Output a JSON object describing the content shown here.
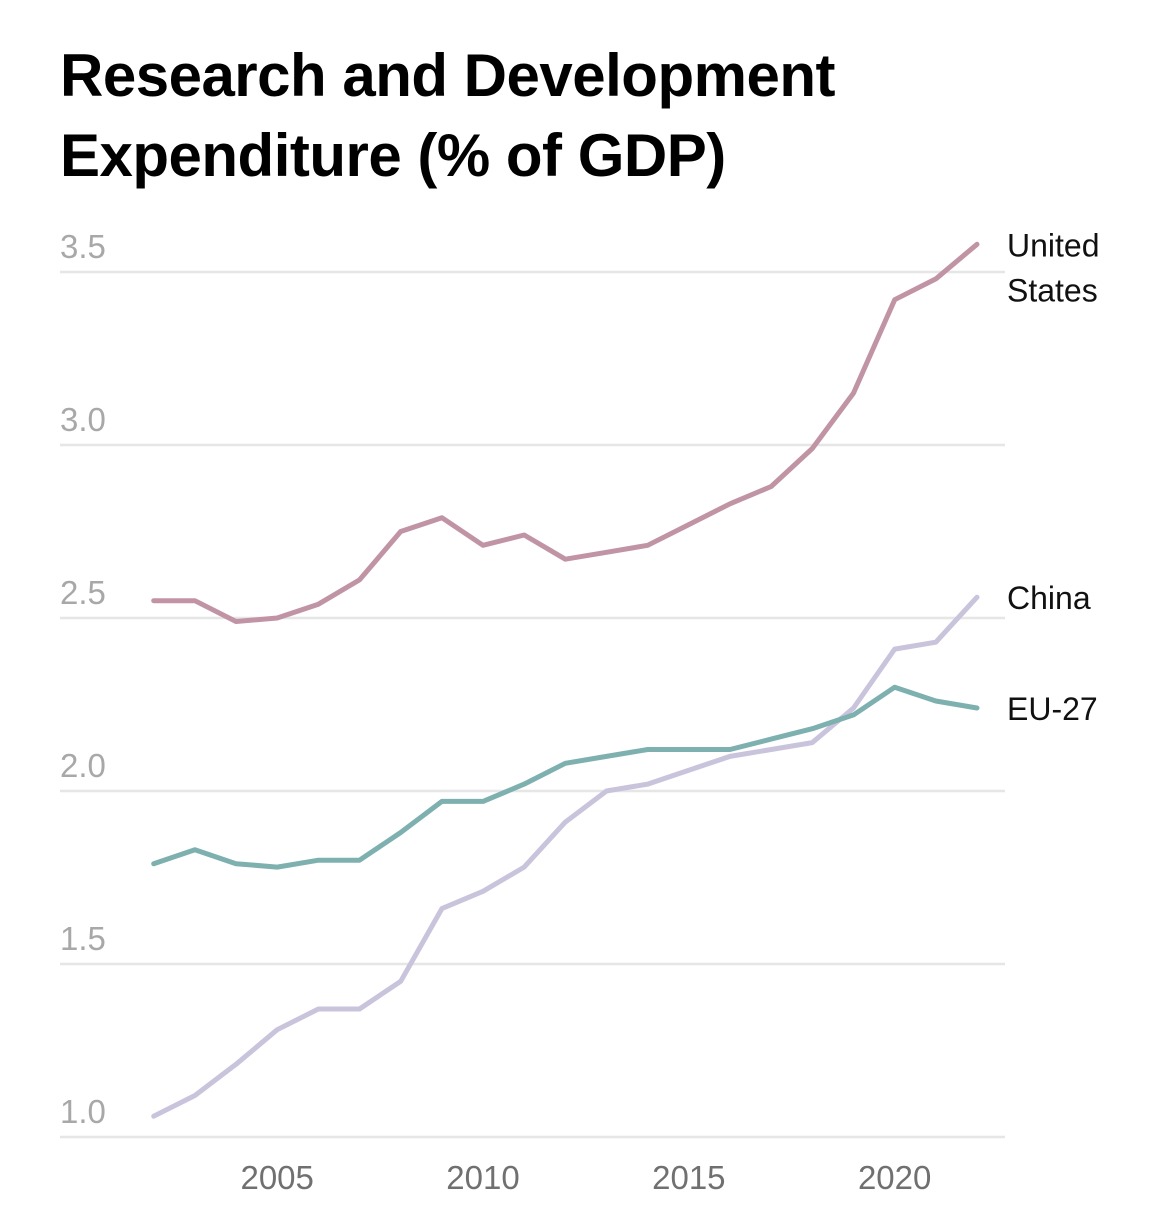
{
  "chart_data": {
    "type": "line",
    "title": "Research and Development Expenditure (% of GDP)",
    "title_lines": [
      "Research and Development",
      "Expenditure (% of GDP)"
    ],
    "xlabel": "",
    "ylabel": "",
    "x": [
      2002,
      2003,
      2004,
      2005,
      2006,
      2007,
      2008,
      2009,
      2010,
      2011,
      2012,
      2013,
      2014,
      2015,
      2016,
      2017,
      2018,
      2019,
      2020,
      2021,
      2022
    ],
    "xlim": [
      2002,
      2022
    ],
    "ylim": [
      1.0,
      3.5
    ],
    "xticks": [
      2005,
      2010,
      2015,
      2020
    ],
    "xtick_labels": [
      "2005",
      "2010",
      "2015",
      "2020"
    ],
    "yticks": [
      1.0,
      1.5,
      2.0,
      2.5,
      3.0,
      3.5
    ],
    "ytick_labels": [
      "1.0",
      "1.5",
      "2.0",
      "2.5",
      "3.0",
      "3.5"
    ],
    "grid": "horizontal",
    "legend": "direct-labels-right",
    "series": [
      {
        "name": "United States",
        "label_lines": [
          "United",
          "States"
        ],
        "color": "#c194a5",
        "values": [
          2.55,
          2.55,
          2.49,
          2.5,
          2.54,
          2.61,
          2.75,
          2.79,
          2.71,
          2.74,
          2.67,
          2.69,
          2.71,
          2.77,
          2.83,
          2.88,
          2.99,
          3.15,
          3.42,
          3.48,
          3.58
        ]
      },
      {
        "name": "China",
        "label_lines": [
          "China"
        ],
        "color": "#c9c4dc",
        "values": [
          1.06,
          1.12,
          1.21,
          1.31,
          1.37,
          1.37,
          1.45,
          1.66,
          1.71,
          1.78,
          1.91,
          2.0,
          2.02,
          2.06,
          2.1,
          2.12,
          2.14,
          2.24,
          2.41,
          2.43,
          2.56
        ]
      },
      {
        "name": "EU-27",
        "label_lines": [
          "EU-27"
        ],
        "color": "#7eb0b0",
        "values": [
          1.79,
          1.83,
          1.79,
          1.78,
          1.8,
          1.8,
          1.88,
          1.97,
          1.97,
          2.02,
          2.08,
          2.1,
          2.12,
          2.12,
          2.12,
          2.15,
          2.18,
          2.22,
          2.3,
          2.26,
          2.24
        ]
      }
    ]
  }
}
